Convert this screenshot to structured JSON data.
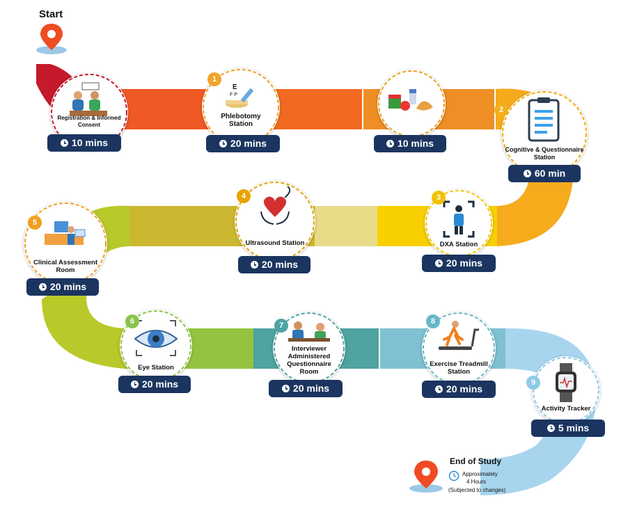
{
  "start_label": "Start",
  "end": {
    "title": "End of Study",
    "approx_line1": "Approximately",
    "approx_line2": "4 Hours",
    "note": "(Subjected to changes)"
  },
  "stations": [
    {
      "number": "",
      "label": "Registration & Informed Consent",
      "time": "10 mins",
      "icon": "registration-icon",
      "ring_color": "#c41a2b"
    },
    {
      "number": "1",
      "label": "Phlebotomy Station",
      "time": "20 mins",
      "icon": "eye-chart-syringe-icon",
      "ring_color": "#f0a020"
    },
    {
      "number": "",
      "label": "",
      "time": "10 mins",
      "icon": "food-icon",
      "ring_color": "#e8a020"
    },
    {
      "number": "2",
      "label": "Cognitive & Questionnaire Station",
      "time": "60 min",
      "icon": "clipboard-icon",
      "ring_color": "#f2a900"
    },
    {
      "number": "3",
      "label": "DXA Station",
      "time": "20 mins",
      "icon": "body-scan-icon",
      "ring_color": "#f4c300"
    },
    {
      "number": "4",
      "label": "Ultrasound Station",
      "time": "20 mins",
      "icon": "heart-hands-icon",
      "ring_color": "#e6a000"
    },
    {
      "number": "5",
      "label": "Clinical Assessment Room",
      "time": "20 mins",
      "icon": "clinical-room-icon",
      "ring_color": "#f0a020"
    },
    {
      "number": "6",
      "label": "Eye Station",
      "time": "20 mins",
      "icon": "eye-scan-icon",
      "ring_color": "#8bc34a"
    },
    {
      "number": "7",
      "label": "Interviewer Administered Questionnaire Room",
      "time": "20 mins",
      "icon": "interview-icon",
      "ring_color": "#4fa3a5"
    },
    {
      "number": "8",
      "label": "Exercise Treadmill Station",
      "time": "20 mins",
      "icon": "treadmill-icon",
      "ring_color": "#66b7c8"
    },
    {
      "number": "9",
      "label": "Activity Tracker",
      "time": "5 mins",
      "icon": "smartwatch-icon",
      "ring_color": "#8ecae6"
    }
  ],
  "colors": {
    "pill": "#1b3560",
    "road_row1": [
      "#c41a2b",
      "#ef5a24",
      "#f08a1e",
      "#f5a623"
    ],
    "road_row2": [
      "#f8c200",
      "#e5d66a",
      "#c9b52b",
      "#aac420"
    ],
    "road_row3": [
      "#a7c93b",
      "#6bb2a8",
      "#8ecae6",
      "#a8d5ee"
    ]
  }
}
